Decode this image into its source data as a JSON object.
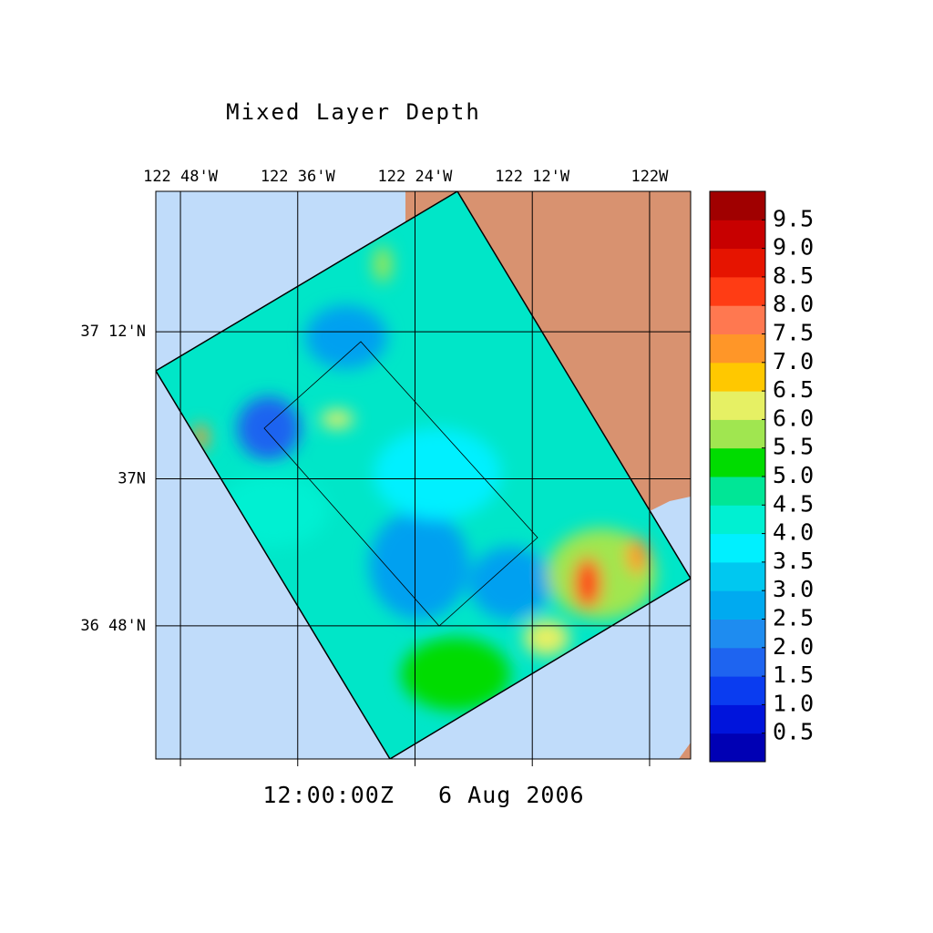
{
  "chart_data": {
    "type": "contour-map",
    "title": "Mixed Layer Depth",
    "subtitle": "12:00:00Z   6 Aug 2006",
    "xlim": [
      -122.842,
      -121.93
    ],
    "ylim": [
      36.619,
      37.391
    ],
    "xticks": [
      {
        "value": -122.8,
        "label": "122 48'W"
      },
      {
        "value": -122.6,
        "label": "122 36'W"
      },
      {
        "value": -122.4,
        "label": "122 24'W"
      },
      {
        "value": -122.2,
        "label": "122 12'W"
      },
      {
        "value": -122.0,
        "label": "122W"
      }
    ],
    "yticks": [
      {
        "value": 37.2,
        "label": "37 12'N"
      },
      {
        "value": 37.0,
        "label": "37N"
      },
      {
        "value": 36.8,
        "label": "36 48'N"
      }
    ],
    "grid": true,
    "colorbar": {
      "lim": [
        0,
        10
      ],
      "ticks": [
        0.5,
        {
          "value": 1,
          "label": "1.0"
        },
        1.5,
        {
          "value": 2,
          "label": "2.0"
        },
        2.5,
        {
          "value": 3,
          "label": "3.0"
        },
        3.5,
        {
          "value": 4,
          "label": "4.0"
        },
        4.5,
        {
          "value": 5,
          "label": "5.0"
        },
        5.5,
        {
          "value": 6,
          "label": "6.0"
        },
        6.5,
        {
          "value": 7,
          "label": "7.0"
        },
        7.5,
        {
          "value": 8,
          "label": "8.0"
        },
        8.5,
        {
          "value": 9,
          "label": "9.0"
        },
        9.5
      ],
      "colors": [
        "#0000b4",
        "#0014dc",
        "#0a3cf0",
        "#1e64f0",
        "#1e8cf0",
        "#00aaf0",
        "#00c8f0",
        "#00f0ff",
        "#00f0d2",
        "#00e696",
        "#00dc00",
        "#a0e650",
        "#e6f064",
        "#ffc800",
        "#ff9628",
        "#ff7850",
        "#ff3c14",
        "#e61400",
        "#c80000",
        "#a00000"
      ]
    }
  }
}
